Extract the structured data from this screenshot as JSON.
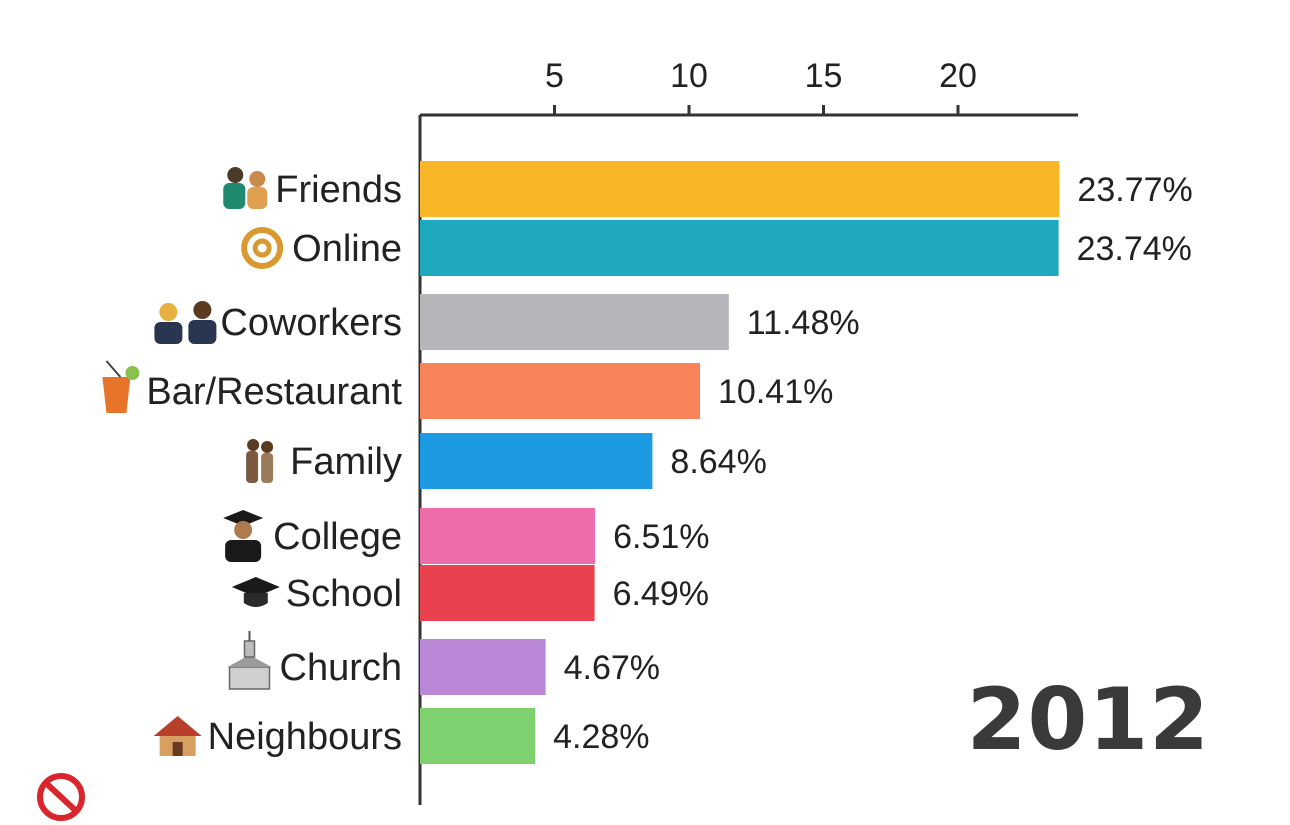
{
  "chart_data": {
    "type": "bar",
    "orientation": "horizontal",
    "categories": [
      "Friends",
      "Online",
      "Coworkers",
      "Bar/Restaurant",
      "Family",
      "College",
      "School",
      "Church",
      "Neighbours"
    ],
    "values": [
      23.77,
      23.74,
      11.48,
      10.41,
      8.64,
      6.51,
      6.49,
      4.67,
      4.28
    ],
    "value_labels": [
      "23.77%",
      "23.74%",
      "11.48%",
      "10.41%",
      "8.64%",
      "6.51%",
      "6.49%",
      "4.67%",
      "4.28%"
    ],
    "colors": [
      "#F9B626",
      "#1EA9BE",
      "#B6B5BA",
      "#F78358",
      "#1C9BE2",
      "#EE6CA9",
      "#E9414E",
      "#BB88D8",
      "#7ED16E"
    ],
    "icons": [
      "people-icon",
      "at-sign-icon",
      "coworkers-icon",
      "cocktail-icon",
      "family-icon",
      "graduate-icon",
      "grad-cap-icon",
      "church-icon",
      "house-icon"
    ],
    "xticks": [
      5,
      10,
      15,
      20
    ],
    "xtick_labels": [
      "5",
      "10",
      "15",
      "20"
    ],
    "xlim": [
      0,
      24.2
    ],
    "axis_position": "top",
    "grid": false,
    "year": "2012"
  }
}
